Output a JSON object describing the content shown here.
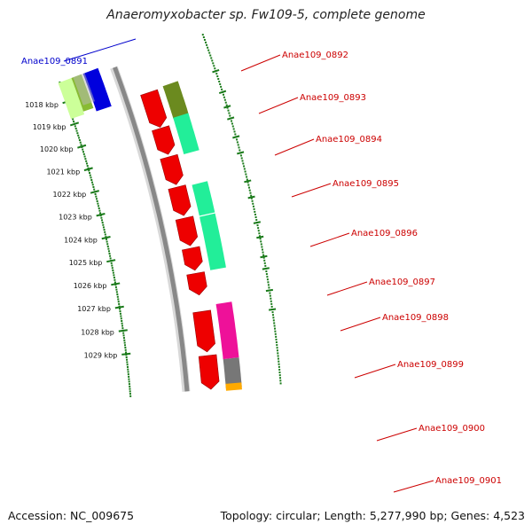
{
  "title": "Anaeromyxobacter sp. Fw109-5, complete genome",
  "footer": {
    "accession": "Accession: NC_009675",
    "summary": "Topology: circular; Length: 5,277,990 bp; Genes: 4,523"
  },
  "ruler": [
    "1018 kbp",
    "1019 kbp",
    "1020 kbp",
    "1021 kbp",
    "1022 kbp",
    "1023 kbp",
    "1024 kbp",
    "1025 kbp",
    "1026 kbp",
    "1027 kbp",
    "1028 kbp",
    "1029 kbp"
  ],
  "colors": {
    "forward_label": "#cc0000",
    "reverse_label": "#0000cc",
    "ruler_dots": "#1a7a1a",
    "backbone": "#888888"
  },
  "genes": [
    {
      "label": "Anae109_0891",
      "color": "#0000cc",
      "strand": "reverse"
    },
    {
      "label": "Anae109_0892",
      "color": "#cc0000",
      "strand": "forward"
    },
    {
      "label": "Anae109_0893",
      "color": "#cc0000",
      "strand": "forward"
    },
    {
      "label": "Anae109_0894",
      "color": "#cc0000",
      "strand": "forward"
    },
    {
      "label": "Anae109_0895",
      "color": "#cc0000",
      "strand": "forward"
    },
    {
      "label": "Anae109_0896",
      "color": "#cc0000",
      "strand": "forward"
    },
    {
      "label": "Anae109_0897",
      "color": "#cc0000",
      "strand": "forward"
    },
    {
      "label": "Anae109_0898",
      "color": "#cc0000",
      "strand": "forward"
    },
    {
      "label": "Anae109_0899",
      "color": "#cc0000",
      "strand": "forward"
    },
    {
      "label": "Anae109_0900",
      "color": "#cc0000",
      "strand": "forward"
    },
    {
      "label": "Anae109_0901",
      "color": "#cc0000",
      "strand": "forward"
    }
  ]
}
